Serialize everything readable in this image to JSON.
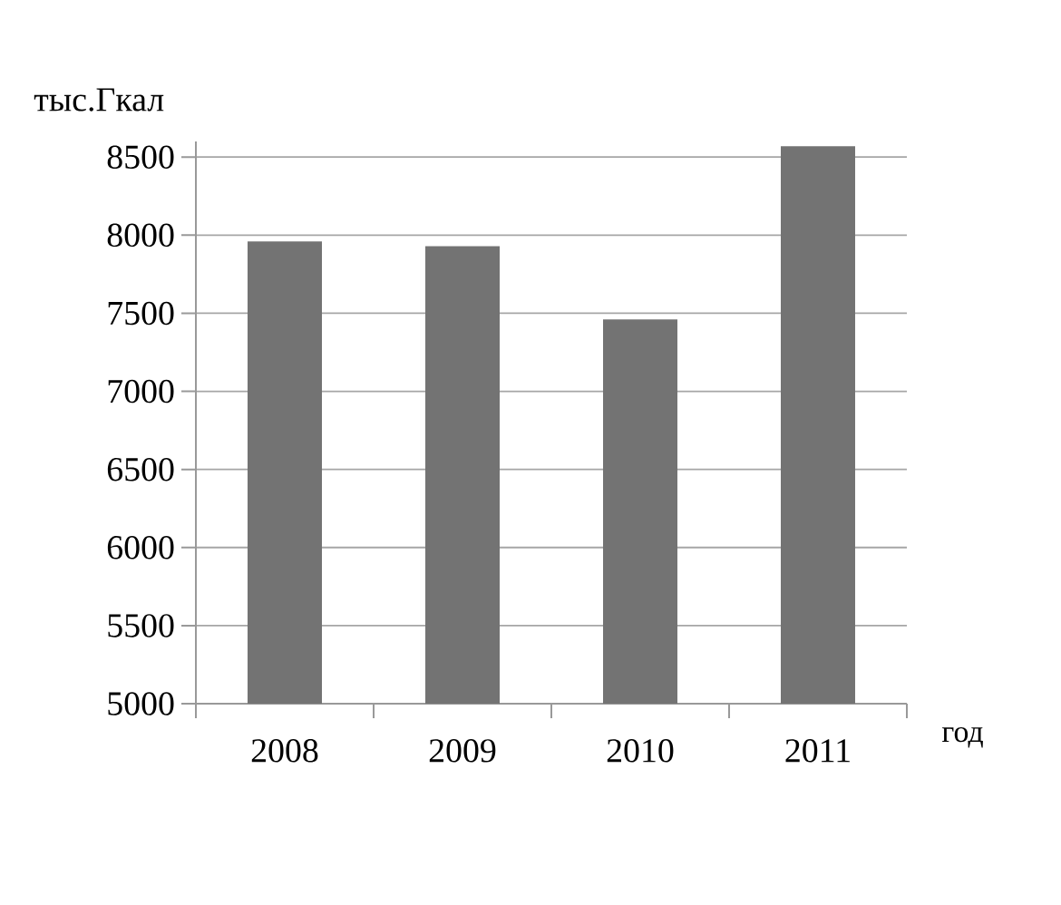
{
  "chart_data": {
    "type": "bar",
    "ylabel": "тыс.Гкал",
    "xlabel": "год",
    "categories": [
      "2008",
      "2009",
      "2010",
      "2011"
    ],
    "values": [
      7960,
      7930,
      7460,
      8570
    ],
    "color": "#737373",
    "ylim": [
      5000,
      8600
    ],
    "yticks": [
      5000,
      5500,
      6000,
      6500,
      7000,
      7500,
      8000,
      8500
    ],
    "grid": "y"
  }
}
